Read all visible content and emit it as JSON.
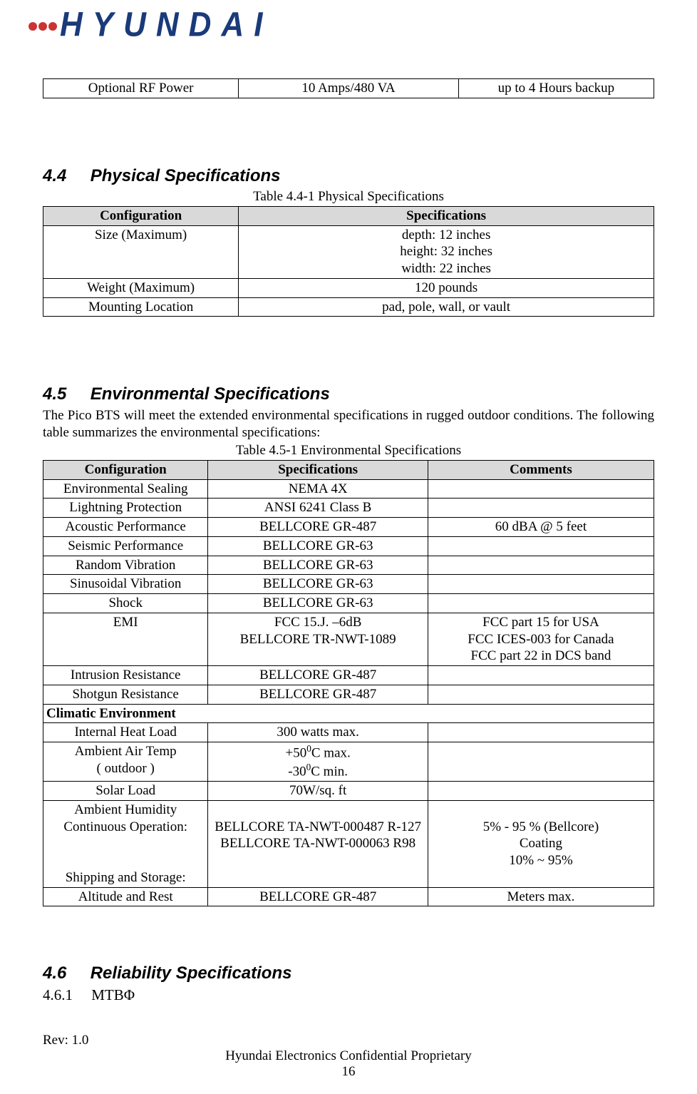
{
  "logo": {
    "text": "HYUNDAI"
  },
  "table_top": {
    "col_widths": [
      "32%",
      "36%",
      "32%"
    ],
    "row": [
      "Optional RF Power",
      "10 Amps/480 VA",
      "up to 4 Hours backup"
    ]
  },
  "section44": {
    "number": "4.4",
    "title": "Physical Specifications",
    "caption": "Table 4.4-1 Physical Specifications",
    "col_widths": [
      "32%",
      "68%"
    ],
    "headers": [
      "Configuration",
      "Specifications"
    ],
    "rows": [
      {
        "c1": "Size (Maximum)",
        "c2_lines": [
          "depth:  12 inches",
          "height:  32 inches",
          "width:   22 inches"
        ]
      },
      {
        "c1": "Weight (Maximum)",
        "c2_lines": [
          "120 pounds"
        ]
      },
      {
        "c1": "Mounting Location",
        "c2_lines": [
          "pad, pole, wall, or vault"
        ]
      }
    ]
  },
  "section45": {
    "number": "4.5",
    "title": "Environmental Specifications",
    "intro": "The Pico BTS will meet the extended environmental specifications in rugged outdoor conditions. The following table summarizes the environmental specifications:",
    "caption": "Table 4.5-1 Environmental Specifications",
    "col_widths": [
      "27%",
      "36%",
      "37%"
    ],
    "headers": [
      "Configuration",
      "Specifications",
      "Comments"
    ],
    "rows": [
      {
        "c1": "Environmental Sealing",
        "c2": "NEMA 4X",
        "c3": ""
      },
      {
        "c1": "Lightning Protection",
        "c2": "ANSI 6241 Class B",
        "c3": ""
      },
      {
        "c1": "Acoustic Performance",
        "c2": "BELLCORE GR-487",
        "c3": "60 dBA @ 5 feet"
      },
      {
        "c1": "Seismic Performance",
        "c2": "BELLCORE GR-63",
        "c3": ""
      },
      {
        "c1": "Random Vibration",
        "c2": "BELLCORE GR-63",
        "c3": ""
      },
      {
        "c1": "Sinusoidal Vibration",
        "c2": "BELLCORE GR-63",
        "c3": ""
      },
      {
        "c1": "Shock",
        "c2": "BELLCORE GR-63",
        "c3": ""
      },
      {
        "c1": "EMI",
        "c2_html": "FCC 15.J. –6dB<br>BELLCORE TR-NWT-1089",
        "c3_html": "FCC part 15 for USA<br>FCC ICES-003 for Canada<br>FCC part 22 in DCS band"
      },
      {
        "c1": "Intrusion Resistance",
        "c2": "BELLCORE GR-487",
        "c3": ""
      },
      {
        "c1": "Shotgun Resistance",
        "c2": "BELLCORE GR-487",
        "c3": ""
      }
    ],
    "climate_header": "Climatic Environment",
    "climate_rows": [
      {
        "c1": "Internal Heat Load",
        "c2": "300 watts max.",
        "c3": ""
      },
      {
        "c1_html": "Ambient Air Temp<br>( outdoor )",
        "c2_html": "+50<sup>0</sup>C max.<br>-30<sup>0</sup>C min.",
        "c3": ""
      },
      {
        "c1": "Solar Load",
        "c2": "70W/sq. ft",
        "c3": ""
      },
      {
        "c1_html": "Ambient Humidity<br>Continuous Operation:<br><br><br>Shipping and Storage:",
        "c2_html": "<br>BELLCORE TA-NWT-000487 R-127<br>BELLCORE TA-NWT-000063 R98",
        "c3_html": "<br>5% - 95 % (Bellcore)<br>Coating<br>10% ~ 95%"
      },
      {
        "c1": "Altitude and Rest",
        "c2": "BELLCORE GR-487",
        "c3": "Meters max."
      }
    ]
  },
  "section46": {
    "number": "4.6",
    "title": "Reliability Specifications",
    "sub_number": "4.6.1",
    "sub_title": "MTBΦ"
  },
  "footer": {
    "rev": "Rev: 1.0",
    "line1": "Hyundai Electronics Confidential Proprietary",
    "page": "16"
  },
  "colors": {
    "header_bg": "#d9d9d9",
    "logo_blue": "#1a3a7a",
    "logo_red": "#cc3333",
    "text": "#000000",
    "bg": "#ffffff"
  },
  "fonts": {
    "body": "Times New Roman",
    "heading": "Arial"
  }
}
